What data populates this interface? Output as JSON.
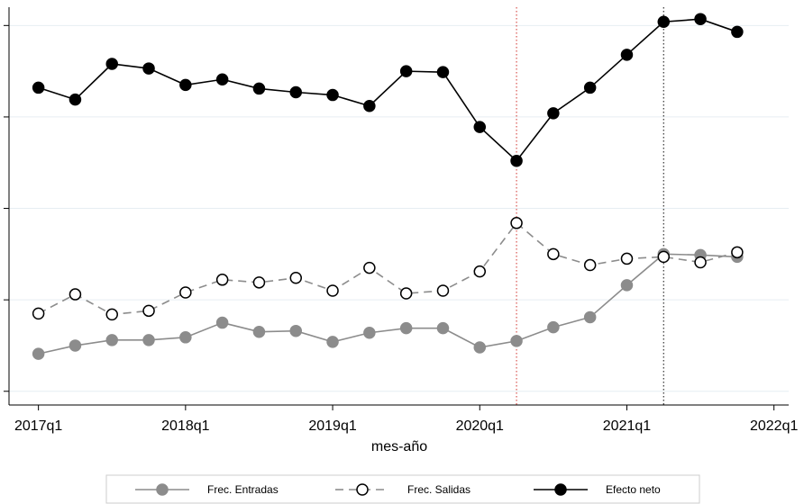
{
  "chart_data": {
    "type": "line",
    "x_title": "mes-año",
    "x": [
      2017,
      2017.25,
      2017.5,
      2017.75,
      2018,
      2018.25,
      2018.5,
      2018.75,
      2019,
      2019.25,
      2019.5,
      2019.75,
      2020,
      2020.25,
      2020.5,
      2020.75,
      2021,
      2021.25,
      2021.5,
      2021.75
    ],
    "series": [
      {
        "name": "Frec. Entradas",
        "color": "#8c8c8c",
        "marker_fill": "#8c8c8c",
        "dash": "solid",
        "values": [
          0.41,
          0.5,
          0.56,
          0.56,
          0.59,
          0.75,
          0.65,
          0.66,
          0.54,
          0.64,
          0.69,
          0.69,
          0.48,
          0.55,
          0.7,
          0.81,
          1.16,
          1.5,
          1.49,
          1.47
        ]
      },
      {
        "name": "Frec. Salidas",
        "color": "#8c8c8c",
        "marker_fill": "#ffffff",
        "marker_stroke": "#000000",
        "dash": "dashed",
        "values": [
          0.85,
          1.06,
          0.84,
          0.88,
          1.08,
          1.22,
          1.19,
          1.24,
          1.1,
          1.35,
          1.07,
          1.1,
          1.31,
          1.84,
          1.5,
          1.38,
          1.45,
          1.47,
          1.41,
          1.52
        ]
      },
      {
        "name": "Efecto neto",
        "color": "#000000",
        "marker_fill": "#000000",
        "dash": "solid",
        "values": [
          3.32,
          3.19,
          3.58,
          3.53,
          3.35,
          3.41,
          3.31,
          3.27,
          3.24,
          3.12,
          3.5,
          3.49,
          2.89,
          2.52,
          3.04,
          3.32,
          3.68,
          4.04,
          4.07,
          3.93
        ]
      }
    ],
    "xlim": [
      2016.8,
      2022.1
    ],
    "xticks": [
      {
        "value": 2017,
        "label": "2017q1"
      },
      {
        "value": 2018,
        "label": "2018q1"
      },
      {
        "value": 2019,
        "label": "2019q1"
      },
      {
        "value": 2020,
        "label": "2020q1"
      },
      {
        "value": 2021,
        "label": "2021q1"
      },
      {
        "value": 2022,
        "label": "2022q1"
      }
    ],
    "ylim": [
      -0.15,
      4.2
    ],
    "yticks": [
      0,
      1,
      2,
      3,
      4
    ],
    "grid": true,
    "xlines": [
      {
        "x": 2020.25,
        "color": "#d9534f"
      },
      {
        "x": 2021.25,
        "color": "#333333"
      }
    ],
    "legend": "bottom"
  }
}
